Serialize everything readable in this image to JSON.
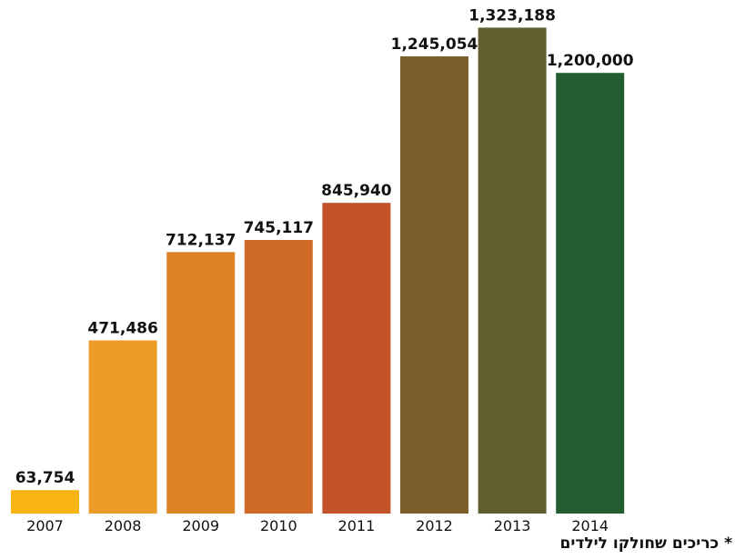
{
  "chart_data": {
    "type": "bar",
    "categories": [
      "2007",
      "2008",
      "2009",
      "2010",
      "2011",
      "2012",
      "2013",
      "2014"
    ],
    "values": [
      63754,
      471486,
      712137,
      745117,
      845940,
      1245054,
      1323188,
      1200000
    ],
    "value_labels": [
      "63,754",
      "471,486",
      "712,137",
      "745,117",
      "845,940",
      "1,245,054",
      "1,323,188",
      "1,200,000"
    ],
    "colors": [
      "#F7B413",
      "#EA9C27",
      "#DC8426",
      "#CF6A27",
      "#C1522A",
      "#7A5F2B",
      "#605F2F",
      "#245E30"
    ],
    "ylim": [
      0,
      1400000
    ],
    "grid": false,
    "legend": "none"
  },
  "footnote": "* כריכים שחולקו לילדים"
}
